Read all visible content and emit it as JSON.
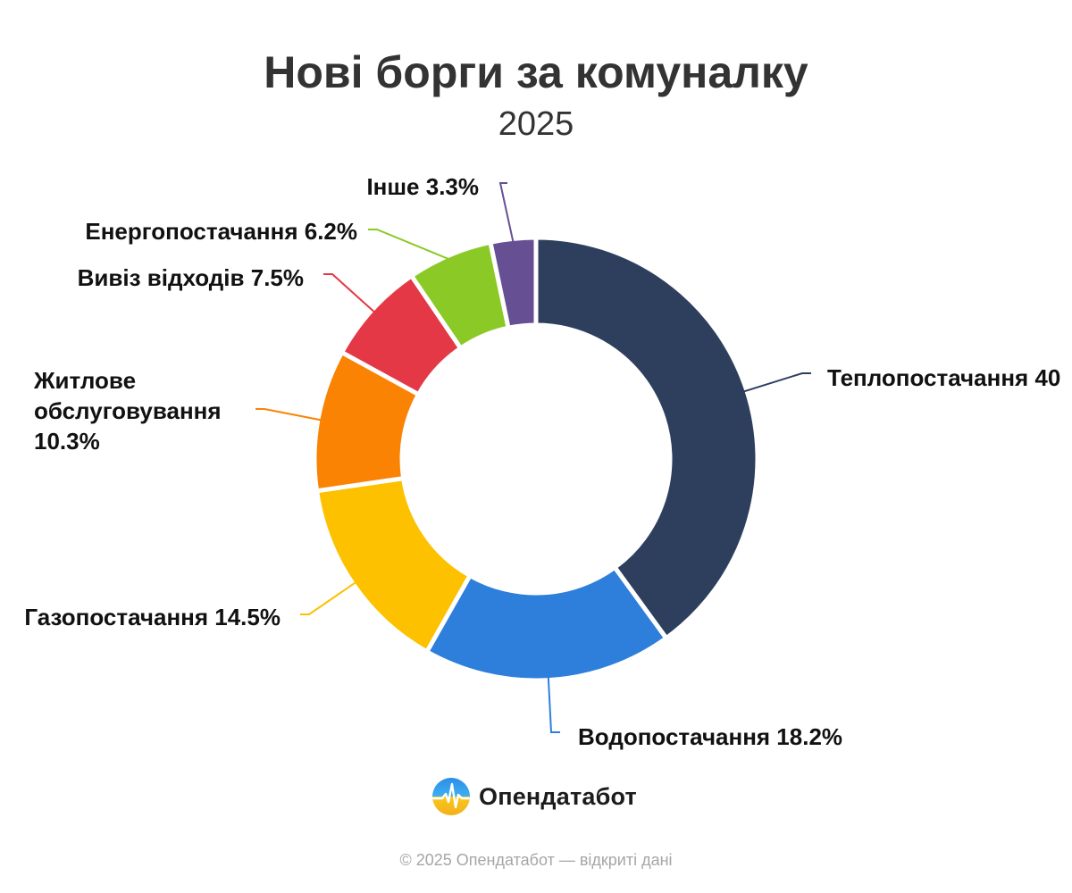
{
  "title": "Нові борги за комуналку",
  "subtitle": "2025",
  "brand": {
    "name": "Опендатабот",
    "logo_icon": "opendatabot-logo-icon"
  },
  "footer": "© 2025 Опендатабот — відкриті дані",
  "chart_data": {
    "type": "pie",
    "variant": "donut",
    "title": "Нові борги за комуналку",
    "subtitle": "2025",
    "unit": "%",
    "slices": [
      {
        "label": "Теплопостачання",
        "value": 40.0,
        "color": "#2e3f5e",
        "display": "Теплопостачання 40"
      },
      {
        "label": "Водопостачання",
        "value": 18.2,
        "color": "#2d7fdb",
        "display": "Водопостачання 18.2%"
      },
      {
        "label": "Газопостачання",
        "value": 14.5,
        "color": "#fdc100",
        "display": "Газопостачання 14.5%"
      },
      {
        "label": "Житлове обслуговування",
        "value": 10.3,
        "color": "#fa8304",
        "display": [
          "Житлове",
          "обслуговування",
          "10.3%"
        ]
      },
      {
        "label": "Вивіз відходів",
        "value": 7.5,
        "color": "#e43846",
        "display": "Вивіз відходів 7.5%"
      },
      {
        "label": "Енергопостачання",
        "value": 6.2,
        "color": "#8bc926",
        "display": "Енергопостачання 6.2%"
      },
      {
        "label": "Інше",
        "value": 3.3,
        "color": "#674f93",
        "display": "Інше 3.3%"
      }
    ]
  }
}
